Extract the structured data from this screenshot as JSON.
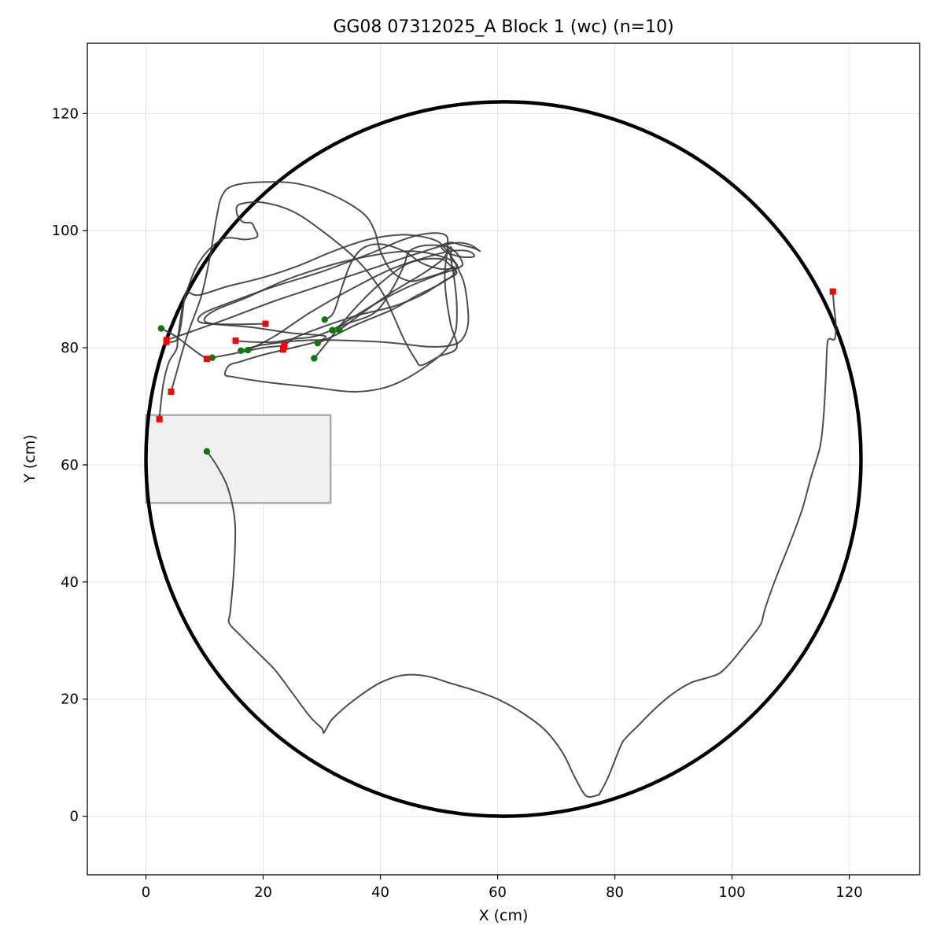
{
  "chart_data": {
    "type": "line",
    "title": "GG08 07312025_A Block 1 (wc) (n=10)",
    "xlabel": "X (cm)",
    "ylabel": "Y (cm)",
    "xlim": [
      -10,
      132
    ],
    "ylim": [
      -10,
      132
    ],
    "xticks": [
      0,
      20,
      40,
      60,
      80,
      100,
      120
    ],
    "yticks": [
      0,
      20,
      40,
      60,
      80,
      100,
      120
    ],
    "xtick_labels": [
      "0",
      "20",
      "40",
      "60",
      "80",
      "100",
      "120"
    ],
    "ytick_labels": [
      "0",
      "20",
      "40",
      "60",
      "80",
      "100",
      "120"
    ],
    "grid": true,
    "arena": {
      "cx": 61,
      "cy": 61,
      "r": 61,
      "color": "#000000"
    },
    "zone": {
      "x0": 0,
      "y0": 53.5,
      "x1": 31.5,
      "y1": 68.5,
      "fill": "#f0f0f0",
      "stroke": "#a8a8a8"
    },
    "colors": {
      "trajectory": "#3a3a3a",
      "start": "#0a7a0a",
      "end": "#ff0000"
    },
    "series": [
      {
        "points": [
          [
            10.4,
            62.3
          ],
          [
            12,
            60
          ],
          [
            14,
            56
          ],
          [
            15.2,
            50
          ],
          [
            15,
            42
          ],
          [
            14.4,
            35
          ],
          [
            14.2,
            33
          ],
          [
            16,
            31
          ],
          [
            19,
            28
          ],
          [
            22,
            25
          ],
          [
            25,
            21
          ],
          [
            28,
            17
          ],
          [
            30,
            15
          ],
          [
            30.3,
            14.2
          ],
          [
            30.7,
            14.8
          ],
          [
            32,
            16.8
          ],
          [
            36,
            20.2
          ],
          [
            40,
            22.8
          ],
          [
            44,
            24.1
          ],
          [
            48,
            23.9
          ],
          [
            52,
            22.7
          ],
          [
            56,
            21.5
          ],
          [
            60,
            20
          ],
          [
            64,
            17.8
          ],
          [
            68,
            14.8
          ],
          [
            71,
            11
          ],
          [
            73,
            7
          ],
          [
            74.5,
            4.2
          ],
          [
            75.5,
            3.3
          ],
          [
            77,
            3.6
          ],
          [
            77.5,
            4
          ],
          [
            79,
            7
          ],
          [
            81,
            12
          ],
          [
            82,
            13.5
          ],
          [
            84,
            15.5
          ],
          [
            87,
            18.5
          ],
          [
            90,
            21
          ],
          [
            93,
            22.8
          ],
          [
            96,
            23.7
          ],
          [
            98,
            24.5
          ],
          [
            100,
            26.5
          ],
          [
            102,
            29
          ],
          [
            104,
            31.5
          ],
          [
            105,
            33
          ],
          [
            105.5,
            35
          ],
          [
            106.5,
            38
          ],
          [
            108,
            42
          ],
          [
            110,
            47
          ],
          [
            112,
            52.5
          ],
          [
            113.5,
            58
          ],
          [
            115,
            63
          ],
          [
            115.6,
            68
          ],
          [
            116,
            75
          ],
          [
            116.2,
            80
          ],
          [
            116.5,
            81.5
          ],
          [
            117.5,
            81.5
          ],
          [
            117.7,
            84
          ],
          [
            117.4,
            87
          ],
          [
            117.2,
            89.6
          ]
        ],
        "start": [
          10.4,
          62.3
        ],
        "end": [
          117.2,
          89.6
        ]
      },
      {
        "points": [
          [
            2.6,
            83.3
          ],
          [
            5,
            82
          ],
          [
            7,
            80.5
          ],
          [
            9,
            79
          ],
          [
            10.4,
            78.1
          ]
        ],
        "start": [
          2.6,
          83.3
        ],
        "end": [
          10.4,
          78.1
        ]
      },
      {
        "points": [
          [
            11.3,
            78.3
          ],
          [
            15,
            79
          ],
          [
            20,
            80
          ],
          [
            23,
            80.3
          ],
          [
            23.6,
            80.4
          ]
        ],
        "start": [
          11.3,
          78.3
        ],
        "end": [
          23.6,
          80.4
        ]
      },
      {
        "points": [
          [
            16.2,
            79.5
          ],
          [
            20,
            80.5
          ],
          [
            28,
            81.3
          ],
          [
            40,
            81
          ],
          [
            48,
            80.2
          ],
          [
            52,
            80.4
          ],
          [
            54,
            81.5
          ],
          [
            55,
            84.5
          ],
          [
            54.5,
            90
          ],
          [
            53.5,
            93
          ],
          [
            52,
            95
          ],
          [
            45,
            96.5
          ],
          [
            35,
            95
          ],
          [
            25,
            92
          ],
          [
            17,
            88.5
          ],
          [
            12,
            86.5
          ],
          [
            10,
            85
          ],
          [
            10.8,
            84.2
          ],
          [
            14,
            84
          ],
          [
            20,
            84.1
          ],
          [
            20.4,
            84.1
          ]
        ],
        "start": [
          16.2,
          79.5
        ],
        "end": [
          20.4,
          84.1
        ]
      },
      {
        "points": [
          [
            17.4,
            79.6
          ],
          [
            22,
            82
          ],
          [
            28,
            86
          ],
          [
            35,
            90
          ],
          [
            42,
            93.5
          ],
          [
            48,
            95.5
          ],
          [
            52,
            96.5
          ],
          [
            55,
            96.5
          ],
          [
            56,
            95.6
          ],
          [
            54,
            95.5
          ],
          [
            52,
            96
          ],
          [
            51,
            96.5
          ],
          [
            50.5,
            97
          ],
          [
            50.5,
            97.5
          ],
          [
            52,
            98
          ],
          [
            54,
            97.5
          ],
          [
            56,
            97
          ],
          [
            57,
            96.5
          ],
          [
            55,
            97.7
          ],
          [
            52,
            97.8
          ],
          [
            46,
            96
          ],
          [
            40,
            94
          ],
          [
            34,
            92
          ],
          [
            28,
            90
          ],
          [
            22,
            88
          ],
          [
            14,
            85
          ],
          [
            7,
            82.5
          ],
          [
            4,
            81.5
          ],
          [
            3.5,
            81.3
          ]
        ],
        "start": [
          17.4,
          79.6
        ],
        "end": [
          3.5,
          81.3
        ]
      },
      {
        "points": [
          [
            28.7,
            78.2
          ],
          [
            31,
            81
          ],
          [
            35,
            86
          ],
          [
            40,
            91
          ],
          [
            45,
            94.5
          ],
          [
            50,
            95.2
          ],
          [
            52,
            94
          ],
          [
            53,
            92.7
          ],
          [
            51,
            91.5
          ],
          [
            47,
            89
          ],
          [
            42,
            87
          ],
          [
            36,
            85.5
          ],
          [
            30,
            83.5
          ],
          [
            25,
            81.5
          ],
          [
            23.4,
            79.7
          ]
        ],
        "start": [
          28.7,
          78.2
        ],
        "end": [
          23.4,
          79.7
        ]
      },
      {
        "points": [
          [
            29.3,
            80.8
          ],
          [
            32,
            82
          ],
          [
            36,
            84
          ],
          [
            42,
            86.5
          ],
          [
            46,
            88.8
          ],
          [
            50,
            90.8
          ],
          [
            52.5,
            92.5
          ],
          [
            52.5,
            93.8
          ],
          [
            51,
            93
          ],
          [
            48,
            92
          ],
          [
            45,
            91.4
          ],
          [
            42,
            93
          ],
          [
            40,
            96.5
          ],
          [
            39,
            100
          ],
          [
            37,
            103
          ],
          [
            32,
            106
          ],
          [
            26,
            108
          ],
          [
            20,
            108.3
          ],
          [
            15,
            107.7
          ],
          [
            13,
            106
          ],
          [
            12,
            102
          ],
          [
            11,
            96
          ],
          [
            9.5,
            89
          ],
          [
            7,
            82
          ],
          [
            5,
            75
          ],
          [
            4.3,
            72.5
          ]
        ],
        "start": [
          29.3,
          80.8
        ],
        "end": [
          4.3,
          72.5
        ]
      },
      {
        "points": [
          [
            30.5,
            84.8
          ],
          [
            32,
            86
          ],
          [
            33.5,
            90.5
          ],
          [
            35,
            94.5
          ],
          [
            37,
            97
          ],
          [
            40,
            97.7
          ],
          [
            44,
            96.5
          ],
          [
            47,
            94.5
          ],
          [
            50,
            93.5
          ],
          [
            52,
            93.5
          ],
          [
            53,
            94
          ],
          [
            51,
            97
          ],
          [
            49,
            98.5
          ],
          [
            44,
            99.3
          ],
          [
            38,
            98.5
          ],
          [
            32,
            96.5
          ],
          [
            26,
            94
          ],
          [
            20,
            92
          ],
          [
            14,
            90.5
          ],
          [
            9,
            89
          ],
          [
            7,
            89.5
          ],
          [
            6.5,
            88
          ],
          [
            6,
            84
          ],
          [
            5.2,
            81.3
          ],
          [
            3.5,
            81
          ]
        ],
        "start": [
          30.5,
          84.8
        ],
        "end": [
          3.5,
          81
        ]
      },
      {
        "points": [
          [
            31.8,
            83
          ],
          [
            35,
            85
          ],
          [
            40,
            88
          ],
          [
            45,
            90.5
          ],
          [
            50,
            92.5
          ],
          [
            53,
            93.5
          ],
          [
            54,
            94.5
          ],
          [
            52,
            97
          ],
          [
            48,
            97.5
          ],
          [
            45,
            96.5
          ],
          [
            44,
            94
          ],
          [
            42,
            90
          ],
          [
            39,
            86
          ],
          [
            34,
            84
          ],
          [
            29,
            82
          ],
          [
            25,
            81.5
          ],
          [
            22,
            81
          ],
          [
            18,
            81
          ],
          [
            15.3,
            81.2
          ]
        ],
        "start": [
          31.8,
          83
        ],
        "end": [
          15.3,
          81.2
        ]
      },
      {
        "points": [
          [
            33,
            83
          ],
          [
            37,
            86
          ],
          [
            42,
            89.5
          ],
          [
            47,
            92.5
          ],
          [
            50.5,
            95
          ],
          [
            52,
            97.2
          ],
          [
            52,
            95.5
          ],
          [
            52.5,
            92.5
          ],
          [
            53,
            88
          ],
          [
            53,
            84
          ],
          [
            52.5,
            82
          ],
          [
            51,
            79.5
          ],
          [
            48,
            77
          ],
          [
            44,
            74.5
          ],
          [
            40,
            73
          ],
          [
            35,
            72.5
          ],
          [
            28,
            73.3
          ],
          [
            20,
            74.2
          ],
          [
            15,
            75
          ],
          [
            13.5,
            75.4
          ],
          [
            14.2,
            77
          ],
          [
            16,
            77.6
          ],
          [
            20,
            78.8
          ],
          [
            25,
            80
          ],
          [
            29,
            81
          ],
          [
            30.5,
            82
          ],
          [
            25,
            82.5
          ],
          [
            18,
            83.5
          ],
          [
            12,
            84
          ],
          [
            9,
            84.5
          ],
          [
            10,
            86
          ],
          [
            15,
            88
          ],
          [
            22,
            90.5
          ],
          [
            30,
            93
          ],
          [
            38,
            96
          ],
          [
            44,
            98.5
          ],
          [
            48,
            99.5
          ],
          [
            51,
            99.3
          ],
          [
            51.5,
            97.5
          ],
          [
            51,
            93
          ],
          [
            51.2,
            89
          ],
          [
            52,
            84
          ],
          [
            53,
            80
          ],
          [
            50,
            78.5
          ],
          [
            47,
            77
          ],
          [
            46,
            78
          ],
          [
            44,
            81.5
          ],
          [
            42,
            86
          ],
          [
            40,
            90
          ],
          [
            36,
            95
          ],
          [
            30,
            100
          ],
          [
            25,
            103.3
          ],
          [
            20,
            104.8
          ],
          [
            16,
            104.5
          ],
          [
            15.5,
            103
          ],
          [
            16.5,
            101.5
          ],
          [
            18,
            101.3
          ],
          [
            18.5,
            100.5
          ],
          [
            19,
            99
          ],
          [
            17,
            98.5
          ],
          [
            13,
            98.5
          ],
          [
            9,
            94.5
          ],
          [
            6.5,
            88
          ],
          [
            5.5,
            82
          ],
          [
            5.3,
            80
          ],
          [
            4.8,
            79
          ],
          [
            3.9,
            77.5
          ],
          [
            3,
            74
          ],
          [
            2.5,
            70
          ],
          [
            2.3,
            67.8
          ]
        ],
        "start": [
          33,
          83
        ],
        "end": [
          2.3,
          67.8
        ]
      }
    ]
  }
}
